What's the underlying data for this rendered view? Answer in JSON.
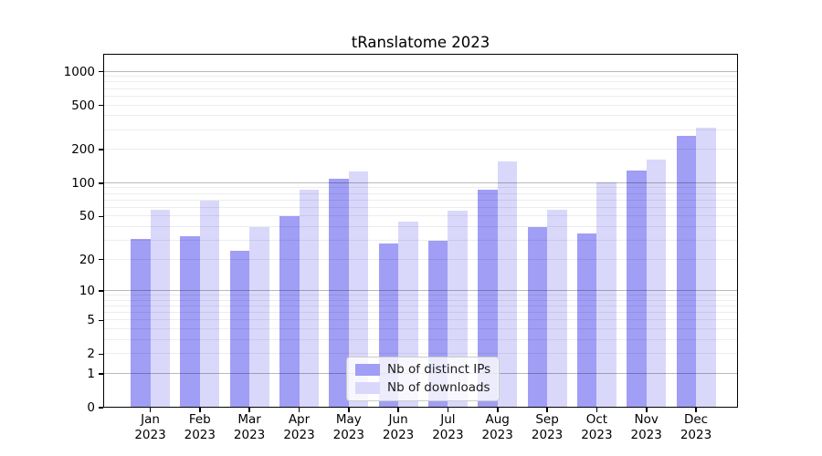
{
  "title": "tRanslatome 2023",
  "chart_data": {
    "type": "bar",
    "title": "tRanslatome 2023",
    "categories": [
      "Jan 2023",
      "Feb 2023",
      "Mar 2023",
      "Apr 2023",
      "May 2023",
      "Jun 2023",
      "Jul 2023",
      "Aug 2023",
      "Sep 2023",
      "Oct 2023",
      "Nov 2023",
      "Dec 2023"
    ],
    "series": [
      {
        "name": "Nb of distinct IPs",
        "color": "#a09ef5",
        "values": [
          31,
          33,
          24,
          50,
          110,
          28,
          30,
          87,
          40,
          35,
          131,
          267
        ]
      },
      {
        "name": "Nb of downloads",
        "color": "#d9d8fb",
        "values": [
          58,
          69,
          40,
          87,
          127,
          45,
          56,
          158,
          58,
          102,
          162,
          314
        ]
      }
    ],
    "xlabel": "",
    "ylabel": "",
    "yscale": "log1p",
    "yticks": [
      0,
      1,
      2,
      5,
      10,
      20,
      50,
      100,
      200,
      500,
      1000
    ],
    "ylim": [
      0,
      1400
    ],
    "grid": true,
    "grid_drawn_above_bars": true,
    "legend_position": "lower center",
    "legend_entries": [
      "Nb of distinct IPs",
      "Nb of downloads"
    ]
  }
}
